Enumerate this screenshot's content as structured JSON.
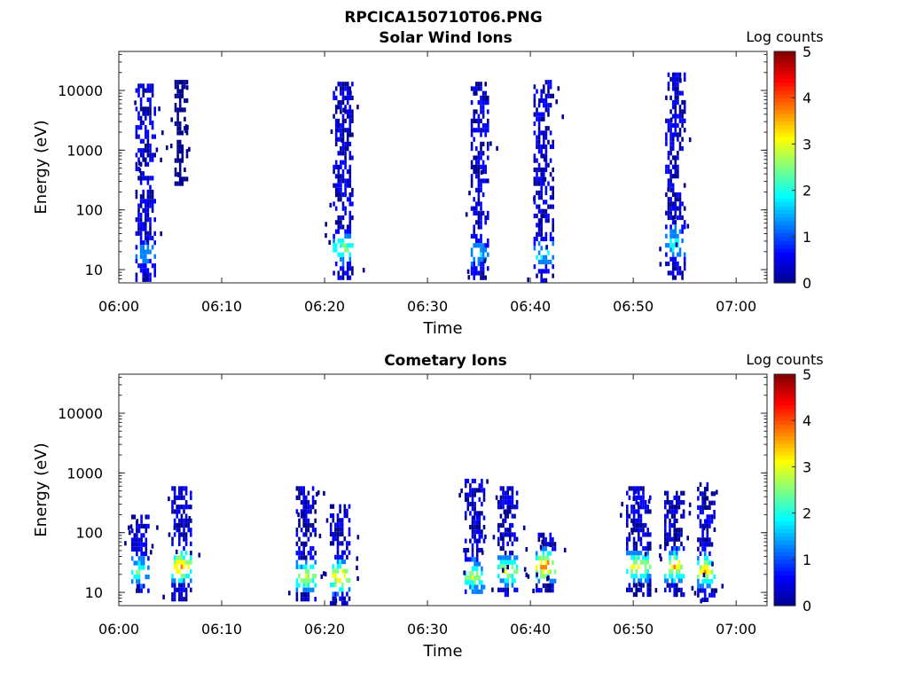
{
  "figure": {
    "title": "RPCICA150710T06.PNG"
  },
  "colormap": [
    "#00008f",
    "#0000ff",
    "#0080ff",
    "#00ffff",
    "#80ff80",
    "#ffff00",
    "#ff8000",
    "#ff0000",
    "#800000"
  ],
  "chart_data": [
    {
      "type": "heatmap",
      "title": "Solar Wind Ions",
      "xlabel": "Time",
      "ylabel": "Energy (eV)",
      "x_ticks": [
        "06:00",
        "06:10",
        "06:20",
        "06:30",
        "06:40",
        "06:50",
        "07:00"
      ],
      "y_ticks": [
        "10",
        "100",
        "1000",
        "10000"
      ],
      "y_scale": "log",
      "xlim": [
        "06:00",
        "07:03"
      ],
      "ylim": [
        6,
        45000
      ],
      "colorbar": {
        "label": "Log counts",
        "ticks": [
          "0",
          "1",
          "2",
          "3",
          "4",
          "5"
        ],
        "range": [
          0,
          5
        ]
      },
      "bursts": [
        {
          "t": "06:02.5",
          "width_min": 1.8,
          "e_low": 6,
          "e_high": 13000,
          "low_energy_peak_eV": 20,
          "low_energy_peak_log_counts": 1.3
        },
        {
          "t": "06:06.0",
          "width_min": 1.2,
          "e_low": 300,
          "e_high": 15000,
          "low_energy_peak_eV": null,
          "low_energy_peak_log_counts": 0.3
        },
        {
          "t": "06:21.8",
          "width_min": 2.0,
          "e_low": 6,
          "e_high": 14000,
          "low_energy_peak_eV": 25,
          "low_energy_peak_log_counts": 2.4
        },
        {
          "t": "06:35.0",
          "width_min": 1.6,
          "e_low": 6,
          "e_high": 14000,
          "low_energy_peak_eV": 20,
          "low_energy_peak_log_counts": 1.6
        },
        {
          "t": "06:41.2",
          "width_min": 1.8,
          "e_low": 6,
          "e_high": 15000,
          "low_energy_peak_eV": 20,
          "low_energy_peak_log_counts": 1.8
        },
        {
          "t": "06:54.0",
          "width_min": 1.8,
          "e_low": 6,
          "e_high": 20000,
          "low_energy_peak_eV": 30,
          "low_energy_peak_log_counts": 2.0
        }
      ]
    },
    {
      "type": "heatmap",
      "title": "Cometary Ions",
      "xlabel": "Time",
      "ylabel": "Energy (eV)",
      "x_ticks": [
        "06:00",
        "06:10",
        "06:20",
        "06:30",
        "06:40",
        "06:50",
        "07:00"
      ],
      "y_ticks": [
        "10",
        "100",
        "1000",
        "10000"
      ],
      "y_scale": "log",
      "xlim": [
        "06:00",
        "07:03"
      ],
      "ylim": [
        6,
        45000
      ],
      "colorbar": {
        "label": "Log counts",
        "ticks": [
          "0",
          "1",
          "2",
          "3",
          "4",
          "5"
        ],
        "range": [
          0,
          5
        ]
      },
      "bursts": [
        {
          "t": "06:02.0",
          "width_min": 1.6,
          "e_low": 10,
          "e_high": 200,
          "low_energy_peak_eV": 25,
          "low_energy_peak_log_counts": 2.2
        },
        {
          "t": "06:06.0",
          "width_min": 1.8,
          "e_low": 6,
          "e_high": 600,
          "low_energy_peak_eV": 30,
          "low_energy_peak_log_counts": 3.8
        },
        {
          "t": "06:18.2",
          "width_min": 2.0,
          "e_low": 6,
          "e_high": 600,
          "low_energy_peak_eV": 20,
          "low_energy_peak_log_counts": 3.0
        },
        {
          "t": "06:21.5",
          "width_min": 2.0,
          "e_low": 6,
          "e_high": 300,
          "low_energy_peak_eV": 20,
          "low_energy_peak_log_counts": 3.5
        },
        {
          "t": "06:34.5",
          "width_min": 1.8,
          "e_low": 10,
          "e_high": 800,
          "low_energy_peak_eV": 20,
          "low_energy_peak_log_counts": 2.8
        },
        {
          "t": "06:37.8",
          "width_min": 2.0,
          "e_low": 10,
          "e_high": 600,
          "low_energy_peak_eV": 25,
          "low_energy_peak_log_counts": 3.0
        },
        {
          "t": "06:41.5",
          "width_min": 2.0,
          "e_low": 10,
          "e_high": 100,
          "low_energy_peak_eV": 30,
          "low_energy_peak_log_counts": 4.0
        },
        {
          "t": "06:50.5",
          "width_min": 2.4,
          "e_low": 10,
          "e_high": 600,
          "low_energy_peak_eV": 30,
          "low_energy_peak_log_counts": 3.2
        },
        {
          "t": "06:54.0",
          "width_min": 2.0,
          "e_low": 10,
          "e_high": 500,
          "low_energy_peak_eV": 30,
          "low_energy_peak_log_counts": 3.4
        },
        {
          "t": "06:57.0",
          "width_min": 1.6,
          "e_low": 6,
          "e_high": 700,
          "low_energy_peak_eV": 25,
          "low_energy_peak_log_counts": 3.6
        }
      ]
    }
  ]
}
